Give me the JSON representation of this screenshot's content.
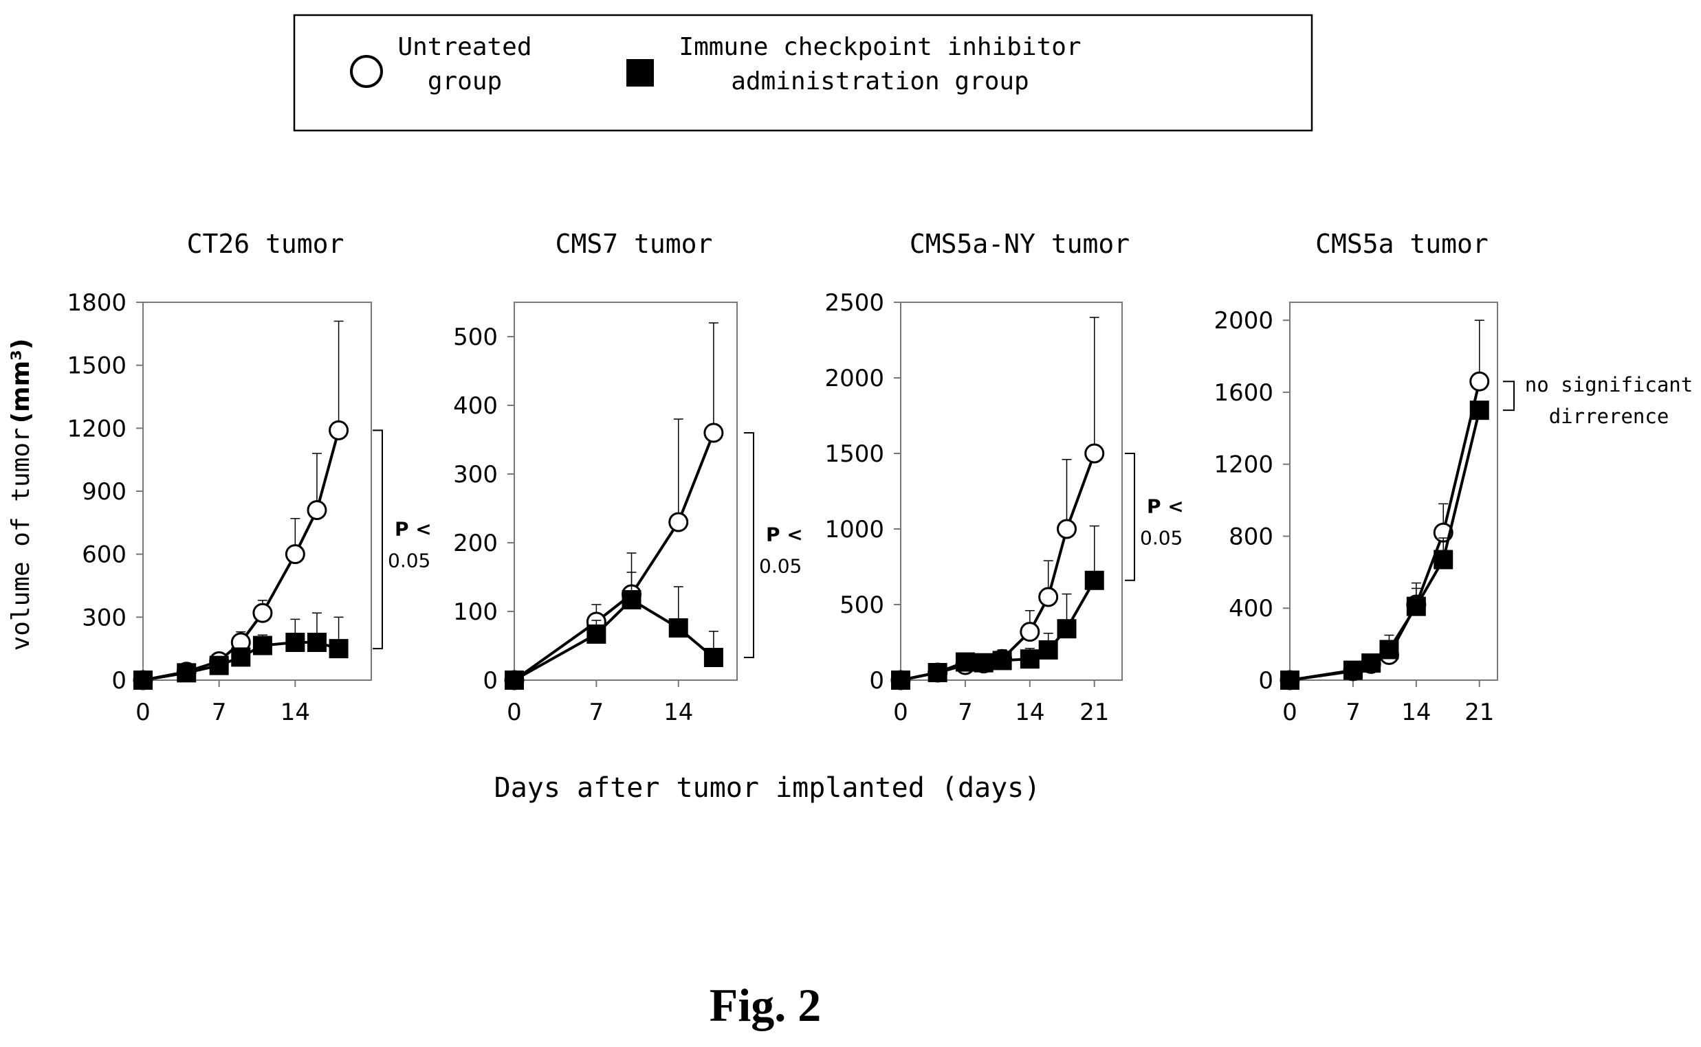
{
  "legend": {
    "untreated": [
      "Untreated",
      "group"
    ],
    "treated": [
      "Immune checkpoint inhibitor",
      "administration group"
    ]
  },
  "axis": {
    "ylabel": "volume of tumor",
    "yunit": "(mm³)",
    "xlabel": "Days after tumor implanted (days)"
  },
  "figure_label": "Fig. 2",
  "chart_data": [
    {
      "type": "line",
      "title": "CT26 tumor",
      "xlim": [
        0,
        21
      ],
      "ylim": [
        0,
        1800
      ],
      "xticks": [
        0,
        7,
        14
      ],
      "yticks": [
        0,
        300,
        600,
        900,
        1200,
        1500,
        1800
      ],
      "series": [
        {
          "x": [
            0,
            4,
            7,
            9,
            11,
            14,
            16,
            18
          ],
          "y": [
            0,
            40,
            90,
            180,
            320,
            600,
            810,
            1190
          ],
          "err": [
            0,
            15,
            30,
            50,
            60,
            170,
            270,
            520
          ],
          "marker": "open-circle"
        },
        {
          "x": [
            0,
            4,
            7,
            9,
            11,
            14,
            16,
            18
          ],
          "y": [
            0,
            35,
            70,
            110,
            165,
            180,
            180,
            150
          ],
          "err": [
            0,
            10,
            25,
            35,
            50,
            110,
            140,
            150
          ],
          "marker": "filled-square"
        }
      ],
      "annotation": [
        "P <",
        "0.05"
      ]
    },
    {
      "type": "line",
      "title": "CMS7 tumor",
      "xlim": [
        0,
        19
      ],
      "ylim": [
        0,
        550
      ],
      "xticks": [
        0,
        7,
        14
      ],
      "yticks": [
        0,
        100,
        200,
        300,
        400,
        500
      ],
      "series": [
        {
          "x": [
            0,
            7,
            10,
            14,
            17
          ],
          "y": [
            0,
            85,
            125,
            230,
            360
          ],
          "err": [
            0,
            25,
            60,
            150,
            160
          ],
          "marker": "open-circle"
        },
        {
          "x": [
            0,
            7,
            10,
            14,
            17
          ],
          "y": [
            0,
            67,
            117,
            76,
            33
          ],
          "err": [
            0,
            20,
            40,
            60,
            38
          ],
          "marker": "filled-square"
        }
      ],
      "annotation": [
        "P <",
        "0.05"
      ]
    },
    {
      "type": "line",
      "title": "CMS5a-NY tumor",
      "xlim": [
        0,
        24
      ],
      "ylim": [
        0,
        2500
      ],
      "xticks": [
        0,
        7,
        14,
        21
      ],
      "yticks": [
        0,
        500,
        1000,
        1500,
        2000,
        2500
      ],
      "series": [
        {
          "x": [
            0,
            4,
            7,
            9,
            11,
            14,
            16,
            18,
            21
          ],
          "y": [
            0,
            50,
            100,
            110,
            140,
            320,
            550,
            1000,
            1500
          ],
          "err": [
            0,
            20,
            40,
            50,
            60,
            140,
            240,
            460,
            900
          ],
          "marker": "open-circle"
        },
        {
          "x": [
            0,
            4,
            7,
            9,
            11,
            14,
            16,
            18,
            21
          ],
          "y": [
            0,
            50,
            120,
            115,
            130,
            140,
            200,
            340,
            660
          ],
          "err": [
            0,
            20,
            30,
            40,
            50,
            70,
            110,
            230,
            360
          ],
          "marker": "filled-square"
        }
      ],
      "annotation": [
        "P <",
        "0.05"
      ]
    },
    {
      "type": "line",
      "title": "CMS5a tumor",
      "xlim": [
        0,
        23
      ],
      "ylim": [
        0,
        2100
      ],
      "xticks": [
        0,
        7,
        14,
        21
      ],
      "yticks": [
        0,
        400,
        800,
        1200,
        1600,
        2000
      ],
      "series": [
        {
          "x": [
            0,
            7,
            9,
            11,
            14,
            17,
            21
          ],
          "y": [
            0,
            50,
            90,
            140,
            420,
            820,
            1660
          ],
          "err": [
            0,
            15,
            30,
            110,
            120,
            160,
            340
          ],
          "marker": "open-circle"
        },
        {
          "x": [
            0,
            7,
            9,
            11,
            14,
            17,
            21
          ],
          "y": [
            0,
            55,
            95,
            170,
            410,
            670,
            1500
          ],
          "err": [
            0,
            15,
            30,
            50,
            100,
            120,
            0
          ],
          "marker": "filled-square"
        }
      ],
      "annotation": [
        "no significant",
        "dirrerence"
      ]
    }
  ]
}
